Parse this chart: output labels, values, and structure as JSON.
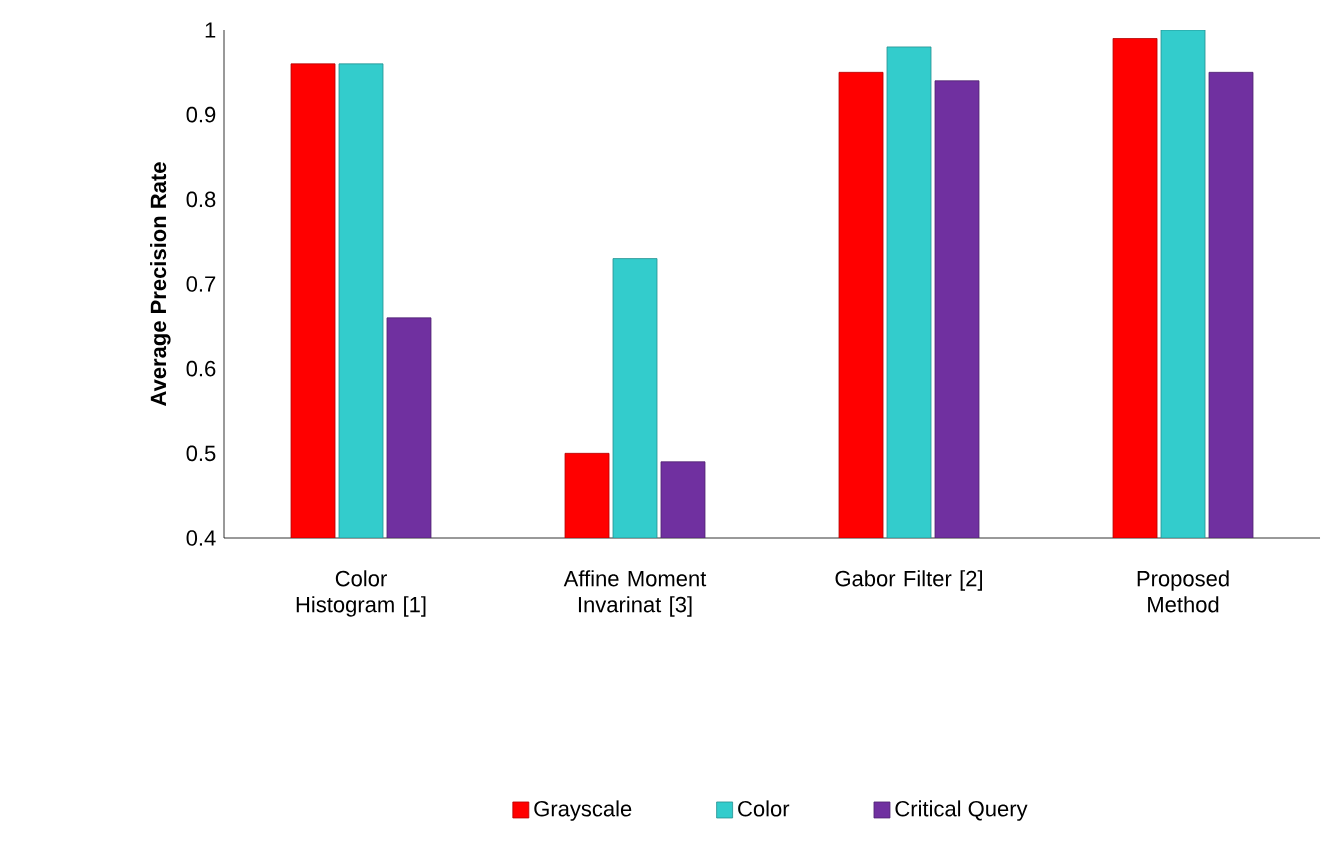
{
  "chart_data": {
    "type": "bar",
    "ylabel": "Average Precision Rate",
    "categories": [
      "Color Histogram [1]",
      "Affine Moment Invarinat [3]",
      "Gabor Filter [2]",
      "Proposed Method"
    ],
    "series": [
      {
        "name": "Grayscale",
        "color": "#ff0000",
        "values": [
          0.96,
          0.5,
          0.95,
          0.99
        ]
      },
      {
        "name": "Color",
        "color": "#33cccc",
        "values": [
          0.96,
          0.73,
          0.98,
          1.0
        ]
      },
      {
        "name": "Critical Query",
        "color": "#7030a0",
        "values": [
          0.66,
          0.49,
          0.94,
          0.95
        ]
      }
    ],
    "ylim": [
      0.4,
      1
    ],
    "yticks": [
      0.4,
      0.5,
      0.6,
      0.7,
      0.8,
      0.9,
      1
    ],
    "legend": "bottom",
    "grid": false
  }
}
